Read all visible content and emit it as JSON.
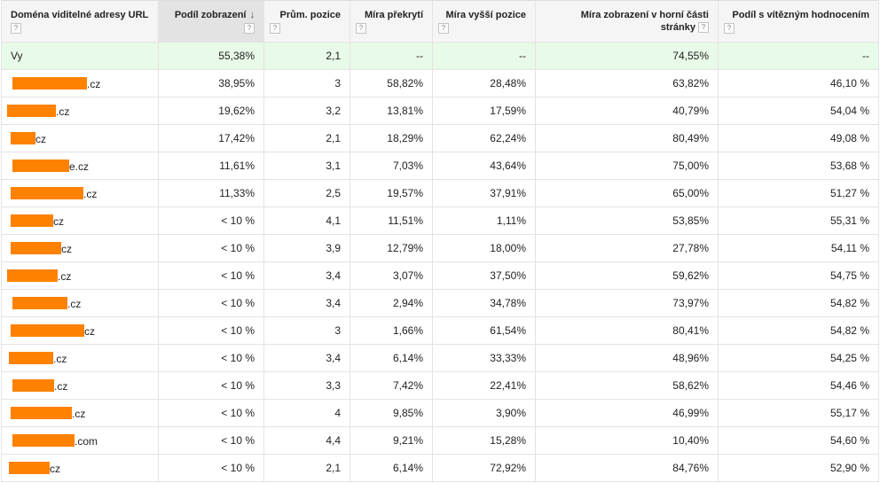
{
  "headers": [
    {
      "label": "Doména viditelné adresy URL",
      "help": "?"
    },
    {
      "label": "Podíl zobrazení",
      "help": "?",
      "sorted": true
    },
    {
      "label": "Prům. pozice",
      "help": "?"
    },
    {
      "label": "Míra překrytí",
      "help": "?"
    },
    {
      "label": "Míra vyšší pozice",
      "help": "?"
    },
    {
      "label": "Míra zobrazení v horní části stránky",
      "help": "?"
    },
    {
      "label": "Podíl s vítězným hodnocením",
      "help": "?"
    }
  ],
  "sort_icon": "down-arrow-icon",
  "colors": {
    "redaction": "#ff8100",
    "you_row_background": "#e8fae8",
    "sorted_header_background": "#e3e3e3"
  },
  "rows": [
    {
      "domain": "Vy",
      "redacted": false,
      "cells": [
        "55,38%",
        "2,1",
        "--",
        "--",
        "74,55%",
        "--"
      ]
    },
    {
      "domain": ".cz",
      "redacted": true,
      "cells": [
        "38,95%",
        "3",
        "58,82%",
        "28,48%",
        "63,82%",
        "46,10 %"
      ]
    },
    {
      "domain": ".cz",
      "redacted": true,
      "cells": [
        "19,62%",
        "3,2",
        "13,81%",
        "17,59%",
        "40,79%",
        "54,04 %"
      ]
    },
    {
      "domain": "cz",
      "redacted": true,
      "cells": [
        "17,42%",
        "2,1",
        "18,29%",
        "62,24%",
        "80,49%",
        "49,08 %"
      ]
    },
    {
      "domain": "e.cz",
      "redacted": true,
      "cells": [
        "11,61%",
        "3,1",
        "7,03%",
        "43,64%",
        "75,00%",
        "53,68 %"
      ]
    },
    {
      "domain": ".cz",
      "redacted": true,
      "cells": [
        "11,33%",
        "2,5",
        "19,57%",
        "37,91%",
        "65,00%",
        "51,27 %"
      ]
    },
    {
      "domain": "cz",
      "redacted": true,
      "cells": [
        "< 10 %",
        "4,1",
        "11,51%",
        "1,11%",
        "53,85%",
        "55,31 %"
      ]
    },
    {
      "domain": "cz",
      "redacted": true,
      "cells": [
        "< 10 %",
        "3,9",
        "12,79%",
        "18,00%",
        "27,78%",
        "54,11 %"
      ]
    },
    {
      "domain": ".cz",
      "redacted": true,
      "cells": [
        "< 10 %",
        "3,4",
        "3,07%",
        "37,50%",
        "59,62%",
        "54,75 %"
      ]
    },
    {
      "domain": ".cz",
      "redacted": true,
      "cells": [
        "< 10 %",
        "3,4",
        "2,94%",
        "34,78%",
        "73,97%",
        "54,82 %"
      ]
    },
    {
      "domain": "cz",
      "redacted": true,
      "cells": [
        "< 10 %",
        "3",
        "1,66%",
        "61,54%",
        "80,41%",
        "54,82 %"
      ]
    },
    {
      "domain": ".cz",
      "redacted": true,
      "cells": [
        "< 10 %",
        "3,4",
        "6,14%",
        "33,33%",
        "48,96%",
        "54,25 %"
      ]
    },
    {
      "domain": ".cz",
      "redacted": true,
      "cells": [
        "< 10 %",
        "3,3",
        "7,42%",
        "22,41%",
        "58,62%",
        "54,46 %"
      ]
    },
    {
      "domain": ".cz",
      "redacted": true,
      "cells": [
        "< 10 %",
        "4",
        "9,85%",
        "3,90%",
        "46,99%",
        "55,17 %"
      ]
    },
    {
      "domain": ".com",
      "redacted": true,
      "cells": [
        "< 10 %",
        "4,4",
        "9,21%",
        "15,28%",
        "10,40%",
        "54,60 %"
      ]
    },
    {
      "domain": "cz",
      "redacted": true,
      "cells": [
        "< 10 %",
        "2,1",
        "6,14%",
        "72,92%",
        "84,76%",
        "52,90 %"
      ]
    }
  ]
}
